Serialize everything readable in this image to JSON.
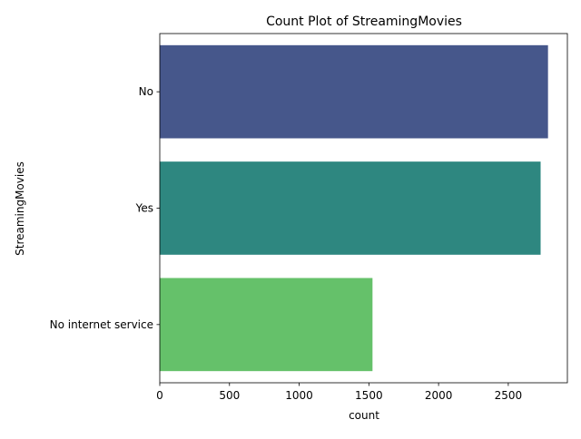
{
  "chart_data": {
    "type": "bar",
    "orientation": "horizontal",
    "title": "Count Plot of StreamingMovies",
    "xlabel": "count",
    "ylabel": "StreamingMovies",
    "categories": [
      "No",
      "Yes",
      "No internet service"
    ],
    "values": [
      2785,
      2732,
      1526
    ],
    "colors": [
      "#46578b",
      "#2e8780",
      "#65c16a"
    ],
    "xlim": [
      0,
      2924
    ],
    "xticks": [
      0,
      500,
      1000,
      1500,
      2000,
      2500
    ],
    "grid": false,
    "legend": "none"
  }
}
